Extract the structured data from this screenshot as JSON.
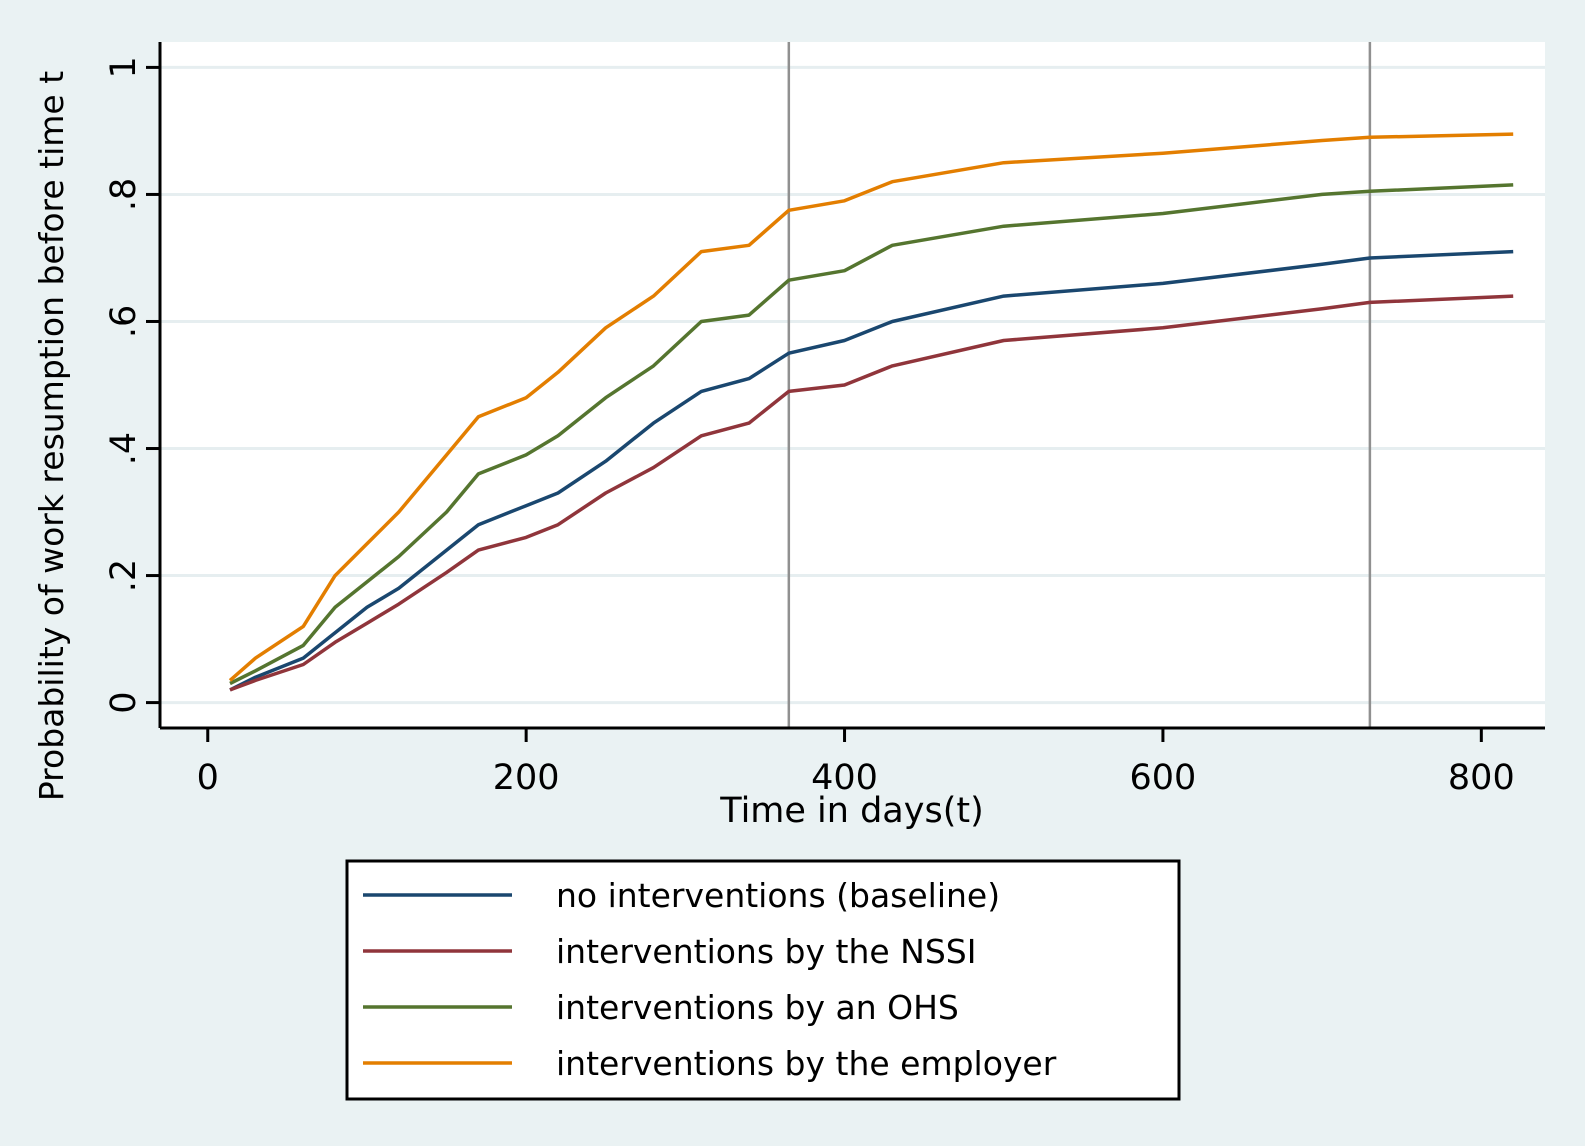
{
  "chart_data": {
    "type": "line",
    "title": "",
    "xlabel": "Time in days(t)",
    "ylabel": "Probability of work resumption before time t",
    "xlim": [
      -30,
      840
    ],
    "ylim": [
      -0.04,
      1.04
    ],
    "x_ticks": [
      0,
      200,
      400,
      600,
      800
    ],
    "x_tick_labels": [
      "0",
      "200",
      "400",
      "600",
      "800"
    ],
    "y_ticks": [
      0,
      0.2,
      0.4,
      0.6,
      0.8,
      1
    ],
    "y_tick_labels": [
      "0",
      ".2",
      ".4",
      ".6",
      ".8",
      "1"
    ],
    "grid": true,
    "reference_lines_x": [
      365,
      730
    ],
    "legend_position": "bottom-center",
    "x": [
      14,
      30,
      60,
      80,
      100,
      120,
      150,
      170,
      200,
      220,
      250,
      280,
      310,
      340,
      365,
      400,
      430,
      500,
      600,
      700,
      730,
      820
    ],
    "series": [
      {
        "name": "no interventions (baseline)",
        "color": "#1a476f",
        "values": [
          0.02,
          0.04,
          0.07,
          0.11,
          0.15,
          0.18,
          0.24,
          0.28,
          0.31,
          0.33,
          0.38,
          0.44,
          0.49,
          0.51,
          0.55,
          0.57,
          0.6,
          0.64,
          0.66,
          0.69,
          0.7,
          0.71
        ]
      },
      {
        "name": "interventions by the NSSI",
        "color": "#90353b",
        "values": [
          0.02,
          0.035,
          0.06,
          0.095,
          0.125,
          0.155,
          0.205,
          0.24,
          0.26,
          0.28,
          0.33,
          0.37,
          0.42,
          0.44,
          0.49,
          0.5,
          0.53,
          0.57,
          0.59,
          0.62,
          0.63,
          0.64
        ]
      },
      {
        "name": "interventions by an OHS",
        "color": "#55752f",
        "values": [
          0.03,
          0.05,
          0.09,
          0.15,
          0.19,
          0.23,
          0.3,
          0.36,
          0.39,
          0.42,
          0.48,
          0.53,
          0.6,
          0.61,
          0.665,
          0.68,
          0.72,
          0.75,
          0.77,
          0.8,
          0.805,
          0.815
        ]
      },
      {
        "name": "interventions by the employer",
        "color": "#e37e00",
        "values": [
          0.035,
          0.07,
          0.12,
          0.2,
          0.25,
          0.3,
          0.39,
          0.45,
          0.48,
          0.52,
          0.59,
          0.64,
          0.71,
          0.72,
          0.775,
          0.79,
          0.82,
          0.85,
          0.865,
          0.885,
          0.89,
          0.895
        ]
      }
    ]
  }
}
